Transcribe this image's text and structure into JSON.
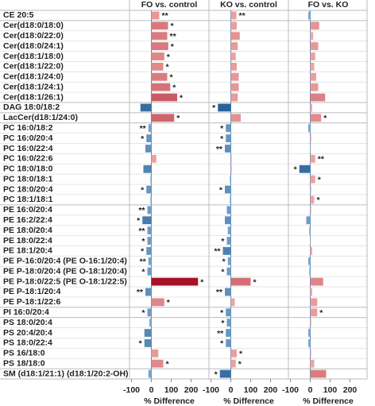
{
  "chart_data": {
    "type": "bar",
    "orientation": "horizontal",
    "xlabel": "% Difference",
    "xlim": [
      -110,
      290
    ],
    "xticks": [
      -100,
      0,
      100,
      200
    ],
    "color_scale": {
      "domain": [
        -70,
        0,
        240
      ],
      "colors": [
        "#1f5a94",
        "#8fb7d6",
        "#f3b3ad",
        "#a50f25"
      ]
    },
    "categories": [
      "CE 20:5",
      "Cer(d18:0/18:0)",
      "Cer(d18:0/22:0)",
      "Cer(d18:0/24:1)",
      "Cer(d18:1/18:0)",
      "Cer(d18:1/22:0)",
      "Cer(d18:1/24:0)",
      "Cer(d18:1/24:1)",
      "Cer(d18:1/26:1)",
      "DAG 18:0/18:2",
      "LacCer(d18:1/24:0)",
      "PC 16:0/18:2",
      "PC 16:0/20:4",
      "PC 16:0/22:4",
      "PC 16:0/22:6",
      "PC 18:0/18:0",
      "PC 18:0/18:1",
      "PC 18:0/20:4",
      "PC 18:1/18:1",
      "PE 16:0/20:4",
      "PE 16:2/22:4",
      "PE 18:0/20:4",
      "PE 18:0/22:4",
      "PE 18:1/20:4",
      "PE P-16:0/20:4 (PE O-16:1/20:4)",
      "PE P-18:0/20:4 (PE O-18:1/20:4)",
      "PE P-18:0/22:5 (PE O-18:1/22:5)",
      "PE P-18:1/20:4",
      "PE P-18:1/22:6",
      "PI 16:0/20:4",
      "PS 18:0/20:4",
      "PS 20:4/20:4",
      "PS 18:0/22:4",
      "PS 16/18:0",
      "PS 18/18:0",
      "SM (d18:1/21:1) (d18:1/20:2-OH)"
    ],
    "series": [
      {
        "name": "FO vs. control",
        "values": [
          40,
          84,
          80,
          85,
          65,
          60,
          80,
          95,
          130,
          -55,
          115,
          -15,
          -25,
          -30,
          25,
          -40,
          -5,
          -25,
          -5,
          -20,
          -45,
          -20,
          -20,
          -25,
          -15,
          -20,
          235,
          -30,
          65,
          -20,
          -10,
          -35,
          -35,
          35,
          60,
          -15
        ],
        "significance": [
          "**",
          "*",
          "**",
          "*",
          "*",
          "*",
          "*",
          "*",
          "*",
          null,
          "*",
          "**",
          "*",
          null,
          null,
          null,
          null,
          "*",
          null,
          "**",
          "*",
          "**",
          "*",
          "*",
          "**",
          "*",
          "*",
          "**",
          "*",
          "*",
          null,
          null,
          "*",
          null,
          "*",
          null
        ]
      },
      {
        "name": "KO vs. control",
        "values": [
          28,
          30,
          45,
          35,
          25,
          30,
          40,
          40,
          35,
          -65,
          50,
          -25,
          -25,
          -30,
          5,
          5,
          -5,
          -30,
          -5,
          -20,
          -30,
          -15,
          -20,
          -40,
          -15,
          -20,
          100,
          -30,
          20,
          -25,
          -20,
          -25,
          -25,
          30,
          25,
          -55
        ],
        "significance": [
          "**",
          null,
          null,
          null,
          null,
          null,
          null,
          null,
          null,
          "*",
          null,
          "*",
          "*",
          "**",
          null,
          null,
          null,
          "*",
          null,
          null,
          null,
          null,
          "*",
          "**",
          "*",
          "*",
          "*",
          "**",
          null,
          "*",
          "*",
          "**",
          "*",
          "*",
          "*",
          "*"
        ]
      },
      {
        "name": "FO vs. KO",
        "values": [
          -10,
          45,
          15,
          40,
          25,
          20,
          30,
          40,
          75,
          10,
          55,
          -10,
          5,
          3,
          25,
          -55,
          25,
          5,
          20,
          5,
          -20,
          -5,
          3,
          10,
          -10,
          -5,
          65,
          10,
          35,
          35,
          5,
          -10,
          -10,
          5,
          20,
          80
        ],
        "significance": [
          null,
          null,
          null,
          null,
          null,
          null,
          null,
          null,
          null,
          null,
          "*",
          null,
          null,
          null,
          "**",
          "*",
          "*",
          null,
          "*",
          null,
          null,
          null,
          null,
          null,
          null,
          null,
          null,
          null,
          null,
          "*",
          null,
          null,
          null,
          null,
          null,
          null
        ]
      }
    ]
  }
}
